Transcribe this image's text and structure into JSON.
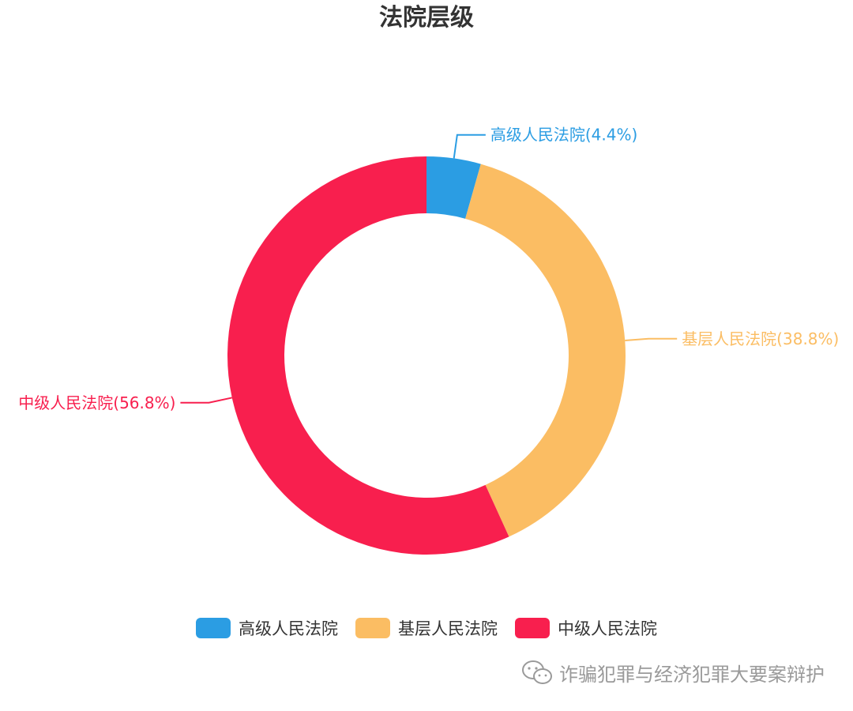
{
  "chart_data": {
    "type": "pie",
    "title": "法院层级",
    "slices": [
      {
        "name": "高级人民法院",
        "value": 4.4,
        "label": "高级人民法院(4.4%)",
        "color": "#2B9DE3"
      },
      {
        "name": "基层人民法院",
        "value": 38.8,
        "label": "基层人民法院(38.8%)",
        "color": "#FBBD63"
      },
      {
        "name": "中级人民法院",
        "value": 56.8,
        "label": "中级人民法院(56.8%)",
        "color": "#F81F4E"
      }
    ],
    "legend_position": "bottom"
  },
  "watermark": {
    "icon": "wechat-icon",
    "text": "诈骗犯罪与经济犯罪大要案辩护"
  }
}
